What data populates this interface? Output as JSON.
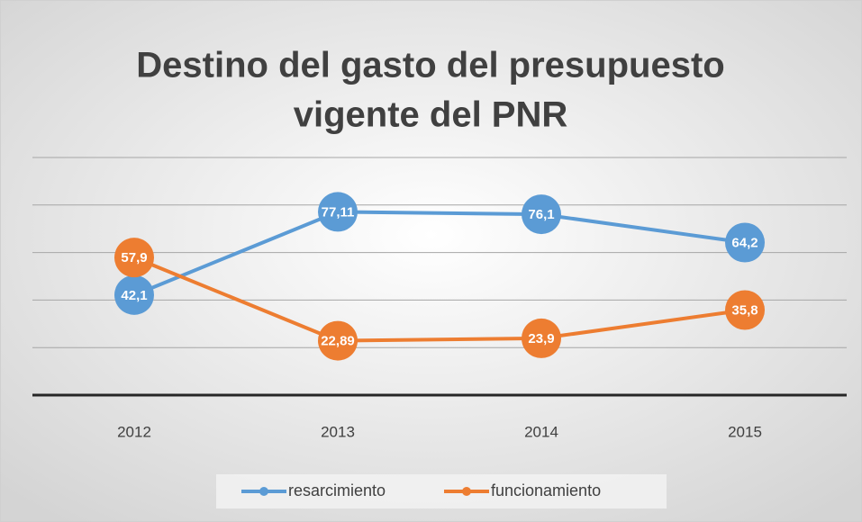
{
  "chart_data": {
    "type": "line",
    "title": [
      "Destino del gasto del presupuesto",
      "vigente del PNR"
    ],
    "categories": [
      "2012",
      "2013",
      "2014",
      "2015"
    ],
    "series": [
      {
        "name": "resarcimiento",
        "color": "#5b9bd5",
        "values": [
          42.1,
          77.11,
          76.1,
          64.2
        ],
        "value_labels": [
          "42,1",
          "77,11",
          "76,1",
          "64,2"
        ]
      },
      {
        "name": "funcionamiento",
        "color": "#ed7d31",
        "values": [
          57.9,
          22.89,
          23.9,
          35.8
        ],
        "value_labels": [
          "57,9",
          "22,89",
          "23,9",
          "35,8"
        ]
      }
    ],
    "ylim": [
      0,
      100
    ],
    "yticks": [
      0,
      20,
      40,
      60,
      80,
      100
    ],
    "grid": true,
    "legend": "bottom"
  }
}
